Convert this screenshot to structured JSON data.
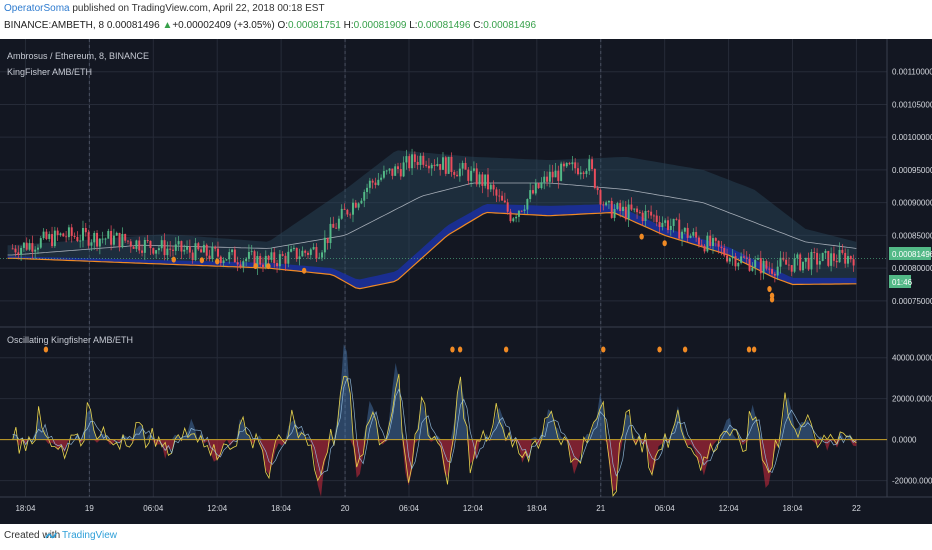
{
  "header": {
    "author": "OperatorSoma",
    "published": "published on TradingView.com, April 22, 2018 00:18 EST",
    "symbol": "BINANCE:AMBETH, 8",
    "last": "0.00081496",
    "change_arrow": "▲",
    "change": "+0.00002409 (+3.05%)",
    "o_label": "O:",
    "o_value": "0.00081751",
    "h_label": "H:",
    "h_value": "0.00081909",
    "l_label": "L:",
    "l_value": "0.00081496",
    "c_label": "C:",
    "c_value": "0.00081496"
  },
  "footer": {
    "created": "Created with",
    "brand": "TradingView"
  },
  "colors": {
    "background": "#131722",
    "grid": "#262b38",
    "candle_up": "#53b987",
    "candle_down": "#eb4d5c",
    "band_fill": "#2b4a5e",
    "channel_fill": "#1a2fa0",
    "lower_line": "#f08a24",
    "ma_line": "#c8cdd6",
    "marker": "#f08a24",
    "osc_blue": "#4b7fb8",
    "osc_red": "#c2283a",
    "osc_yellow": "#e8d44d",
    "zero_line": "#c9a227",
    "price_tag": "#53b987"
  },
  "chart_data": [
    {
      "type": "candlestick",
      "title": "Ambrosus / Ethereum, 8, BINANCE",
      "indicator": "KingFisher AMB/ETH",
      "ylim": [
        0.00071,
        0.00115
      ],
      "y_ticks": [
        "0.00110000",
        "0.00105000",
        "0.00100000",
        "0.00095000",
        "0.00090000",
        "0.00085000",
        "0.00080000",
        "0.00075000"
      ],
      "y_tick_values": [
        0.0011,
        0.00105,
        0.001,
        0.00095,
        0.0009,
        0.00085,
        0.0008,
        0.00075
      ],
      "x_ticks": [
        "18:04",
        "19",
        "06:04",
        "12:04",
        "18:04",
        "20",
        "06:04",
        "12:04",
        "18:04",
        "21",
        "06:04",
        "12:04",
        "18:04",
        "22"
      ],
      "x_tick_positions": [
        0.5,
        3,
        5.5,
        8,
        10.5,
        13,
        15.5,
        18,
        20.5,
        23,
        25.5,
        28,
        30.5,
        33
      ],
      "dashed_day_separators": [
        3,
        13,
        23
      ],
      "last_price_label": "0.00081496",
      "countdown_label": "01:46",
      "price_anchors": [
        [
          0,
          0.00083
        ],
        [
          2,
          0.00085
        ],
        [
          4,
          0.000845
        ],
        [
          6,
          0.00083
        ],
        [
          8,
          0.00082
        ],
        [
          10,
          0.00081
        ],
        [
          12,
          0.00083
        ],
        [
          13,
          0.000885
        ],
        [
          14,
          0.00093
        ],
        [
          16,
          0.00097
        ],
        [
          17.5,
          0.00095
        ],
        [
          18.5,
          0.00093
        ],
        [
          19.5,
          0.00088
        ],
        [
          21,
          0.00094
        ],
        [
          22.5,
          0.00096
        ],
        [
          23.2,
          0.00089
        ],
        [
          25,
          0.00088
        ],
        [
          26.5,
          0.00085
        ],
        [
          28,
          0.00082
        ],
        [
          29.5,
          0.0008
        ],
        [
          31,
          0.00081
        ],
        [
          32,
          0.000815
        ],
        [
          33,
          0.000818
        ]
      ],
      "ma_anchors": [
        [
          0,
          0.00082
        ],
        [
          5,
          0.000835
        ],
        [
          10,
          0.00083
        ],
        [
          13,
          0.00085
        ],
        [
          16,
          0.00091
        ],
        [
          18,
          0.00093
        ],
        [
          21,
          0.00093
        ],
        [
          24,
          0.00092
        ],
        [
          27,
          0.0009
        ],
        [
          29,
          0.00087
        ],
        [
          31,
          0.00084
        ],
        [
          33,
          0.00083
        ]
      ],
      "upper_band_anchors": [
        [
          0,
          0.000835
        ],
        [
          6,
          0.000852
        ],
        [
          10,
          0.00084
        ],
        [
          13,
          0.00092
        ],
        [
          15,
          0.00098
        ],
        [
          18,
          0.00097
        ],
        [
          21,
          0.000965
        ],
        [
          24,
          0.00097
        ],
        [
          27,
          0.00095
        ],
        [
          29,
          0.00092
        ],
        [
          31,
          0.00086
        ],
        [
          33,
          0.00084
        ]
      ],
      "lower_band_anchors": [
        [
          0,
          0.000815
        ],
        [
          10,
          0.0008
        ],
        [
          12.5,
          0.00079
        ],
        [
          13.5,
          0.000768
        ],
        [
          15,
          0.00078
        ],
        [
          17,
          0.00085
        ],
        [
          18.5,
          0.000885
        ],
        [
          21,
          0.00088
        ],
        [
          23.5,
          0.000885
        ],
        [
          25.5,
          0.00085
        ],
        [
          28,
          0.00082
        ],
        [
          29.8,
          0.000785
        ],
        [
          30.5,
          0.000775
        ],
        [
          33,
          0.000776
        ]
      ],
      "channel_anchors": [
        [
          0,
          0.000818
        ],
        [
          10,
          0.000808
        ],
        [
          12.5,
          0.0008
        ],
        [
          13.5,
          0.000782
        ],
        [
          15,
          0.000795
        ],
        [
          17,
          0.000865
        ],
        [
          18.5,
          0.000898
        ],
        [
          21,
          0.000895
        ],
        [
          23.5,
          0.000898
        ],
        [
          25.5,
          0.000862
        ],
        [
          28,
          0.000832
        ],
        [
          29.8,
          0.000798
        ],
        [
          30.5,
          0.000785
        ],
        [
          33,
          0.000785
        ]
      ],
      "markers": [
        [
          6.3,
          0.000813
        ],
        [
          7.4,
          0.000812
        ],
        [
          8,
          0.00081
        ],
        [
          9.5,
          0.000803
        ],
        [
          10,
          0.000803
        ],
        [
          11.4,
          0.000796
        ],
        [
          24.6,
          0.000848
        ],
        [
          25.5,
          0.000838
        ],
        [
          29.6,
          0.000768
        ],
        [
          29.7,
          0.000758
        ],
        [
          29.7,
          0.000752
        ]
      ]
    },
    {
      "type": "oscillator",
      "title": "Oscillating Kingfisher AMB/ETH",
      "ylim": [
        -28000,
        55000
      ],
      "y_ticks": [
        "40000.0000",
        "20000.0000",
        "0.0000",
        "-20000.0000"
      ],
      "y_tick_values": [
        40000,
        20000,
        0,
        -20000
      ],
      "spikes": [
        [
          1,
          9000
        ],
        [
          2,
          -5000
        ],
        [
          3,
          12000
        ],
        [
          5,
          6000
        ],
        [
          6,
          -8000
        ],
        [
          7,
          8000
        ],
        [
          8,
          -12000
        ],
        [
          9,
          10000
        ],
        [
          10,
          -15000
        ],
        [
          11,
          10000
        ],
        [
          12,
          -28000
        ],
        [
          13,
          48000
        ],
        [
          13.5,
          -20000
        ],
        [
          14,
          22000
        ],
        [
          15,
          38000
        ],
        [
          15.5,
          -25000
        ],
        [
          16,
          20000
        ],
        [
          17,
          -18000
        ],
        [
          17.5,
          30000
        ],
        [
          18,
          -12000
        ],
        [
          19,
          14000
        ],
        [
          20,
          -10000
        ],
        [
          21,
          18000
        ],
        [
          22,
          -18000
        ],
        [
          23,
          22000
        ],
        [
          23.5,
          -28000
        ],
        [
          24,
          12000
        ],
        [
          25,
          -15000
        ],
        [
          26,
          14000
        ],
        [
          27,
          -18000
        ],
        [
          28,
          10000
        ],
        [
          29,
          15000
        ],
        [
          29.5,
          -22000
        ],
        [
          30.3,
          18000
        ],
        [
          31,
          12000
        ],
        [
          32,
          -4000
        ],
        [
          32.5,
          3000
        ]
      ],
      "markers": [
        [
          1.3,
          44000
        ],
        [
          17.2,
          44000
        ],
        [
          17.5,
          44000
        ],
        [
          19.3,
          44000
        ],
        [
          23.1,
          44000
        ],
        [
          25.3,
          44000
        ],
        [
          26.3,
          44000
        ],
        [
          28.8,
          44000
        ],
        [
          29,
          44000
        ]
      ]
    }
  ]
}
